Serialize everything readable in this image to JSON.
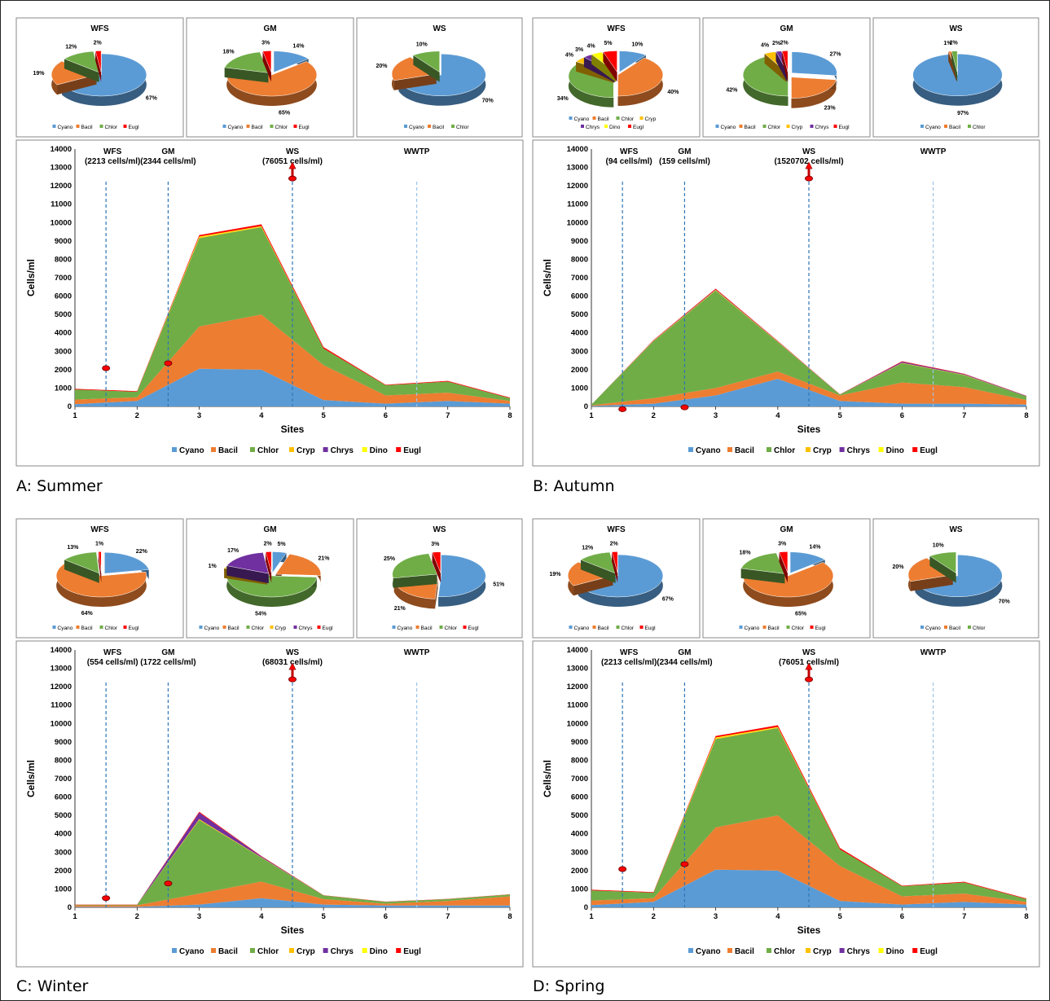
{
  "colors": {
    "Cyano": "#5b9bd5",
    "Bacil": "#ed7d31",
    "Chlor": "#70ad47",
    "Cryp": "#ffc000",
    "Chrys": "#7030a0",
    "Dino": "#ffff00",
    "Eugl": "#ff0000"
  },
  "panels": [
    {
      "caption": "A: Summer",
      "pies": [
        {
          "title": "WFS",
          "legend": [
            "Cyano",
            "Bacil",
            "Chlor",
            "Eugl"
          ],
          "slices": [
            {
              "cat": "Cyano",
              "value": 67,
              "label": "67%"
            },
            {
              "cat": "Bacil",
              "value": 19,
              "label": "19%"
            },
            {
              "cat": "Chlor",
              "value": 12,
              "label": "12%"
            },
            {
              "cat": "Eugl",
              "value": 2,
              "label": "2%"
            }
          ]
        },
        {
          "title": "GM",
          "legend": [
            "Cyano",
            "Bacil",
            "Chlor",
            "Eugl"
          ],
          "slices": [
            {
              "cat": "Cyano",
              "value": 14,
              "label": "14%"
            },
            {
              "cat": "Bacil",
              "value": 65,
              "label": "65%"
            },
            {
              "cat": "Chlor",
              "value": 18,
              "label": "18%"
            },
            {
              "cat": "Eugl",
              "value": 3,
              "label": "3%"
            }
          ]
        },
        {
          "title": "WS",
          "legend": [
            "Cyano",
            "Bacil",
            "Chlor"
          ],
          "slices": [
            {
              "cat": "Cyano",
              "value": 70,
              "label": "70%"
            },
            {
              "cat": "Bacil",
              "value": 20,
              "label": "20%"
            },
            {
              "cat": "Chlor",
              "value": 10,
              "label": "10%"
            }
          ]
        }
      ],
      "area": {
        "ylabel": "Cells/ml",
        "xlabel": "Sites",
        "yticks": [
          0,
          1000,
          2000,
          3000,
          4000,
          5000,
          6000,
          7000,
          8000,
          9000,
          10000,
          11000,
          12000,
          13000,
          14000
        ],
        "xticks": [
          1,
          2,
          3,
          4,
          5,
          6,
          7,
          8
        ],
        "series": {
          "Cyano": [
            120,
            300,
            2050,
            2000,
            350,
            150,
            300,
            150
          ],
          "Bacil": [
            250,
            200,
            2300,
            3000,
            1900,
            450,
            450,
            150
          ],
          "Chlor": [
            550,
            300,
            4800,
            4750,
            900,
            550,
            600,
            150
          ],
          "Cryp": [
            0,
            0,
            50,
            30,
            0,
            0,
            0,
            0
          ],
          "Chrys": [
            0,
            0,
            0,
            0,
            0,
            0,
            0,
            0
          ],
          "Dino": [
            0,
            0,
            40,
            30,
            0,
            0,
            0,
            0
          ],
          "Eugl": [
            40,
            30,
            80,
            100,
            80,
            30,
            40,
            30
          ]
        },
        "markers": [
          {
            "label": "WFS",
            "sub": "(2213 cells/ml)",
            "x": 1.5,
            "dot": 2080,
            "arrow": false
          },
          {
            "label": "GM",
            "sub": "(2344 cells/ml)",
            "x": 2.5,
            "dot": 2350,
            "arrow": false
          },
          {
            "label": "WS",
            "sub": "(76051 cells/ml)",
            "x": 4.5,
            "dot": 12400,
            "arrow": true
          },
          {
            "label": "WWTP",
            "sub": "",
            "x": 6.5,
            "dot": null,
            "arrow": false
          }
        ]
      }
    },
    {
      "caption": "B: Autumn",
      "pies": [
        {
          "title": "WFS",
          "legend": [
            "Cyano",
            "Bacil",
            "Chlor",
            "Cryp",
            "Chrys",
            "Dino",
            "Eugl"
          ],
          "slices": [
            {
              "cat": "Cyano",
              "value": 10,
              "label": "10%"
            },
            {
              "cat": "Bacil",
              "value": 40,
              "label": "40%"
            },
            {
              "cat": "Chlor",
              "value": 34,
              "label": "34%"
            },
            {
              "cat": "Cryp",
              "value": 4,
              "label": "4%"
            },
            {
              "cat": "Chrys",
              "value": 3,
              "label": "3%"
            },
            {
              "cat": "Dino",
              "value": 4,
              "label": "4%"
            },
            {
              "cat": "Eugl",
              "value": 5,
              "label": "5%"
            }
          ]
        },
        {
          "title": "GM",
          "legend": [
            "Cyano",
            "Bacil",
            "Chlor",
            "Cryp",
            "Chrys",
            "Eugl"
          ],
          "slices": [
            {
              "cat": "Cyano",
              "value": 27,
              "label": "27%"
            },
            {
              "cat": "Bacil",
              "value": 23,
              "label": "23%"
            },
            {
              "cat": "Chlor",
              "value": 42,
              "label": "42%"
            },
            {
              "cat": "Cryp",
              "value": 4,
              "label": "4%"
            },
            {
              "cat": "Chrys",
              "value": 2,
              "label": "2%"
            },
            {
              "cat": "Eugl",
              "value": 2,
              "label": "2%"
            }
          ]
        },
        {
          "title": "WS",
          "legend": [
            "Cyano",
            "Bacil",
            "Chlor"
          ],
          "slices": [
            {
              "cat": "Cyano",
              "value": 97,
              "label": "97%"
            },
            {
              "cat": "Bacil",
              "value": 1,
              "label": "1%"
            },
            {
              "cat": "Chlor",
              "value": 2,
              "label": "2%"
            }
          ]
        }
      ],
      "area": {
        "ylabel": "Cells/ml",
        "xlabel": "Sites",
        "yticks": [
          0,
          1000,
          2000,
          3000,
          4000,
          5000,
          6000,
          7000,
          8000,
          9000,
          10000,
          11000,
          12000,
          13000,
          14000
        ],
        "xticks": [
          1,
          2,
          3,
          4,
          5,
          6,
          7,
          8
        ],
        "series": {
          "Cyano": [
            30,
            150,
            600,
            1500,
            300,
            150,
            150,
            100
          ],
          "Bacil": [
            30,
            300,
            400,
            400,
            300,
            1150,
            900,
            250
          ],
          "Chlor": [
            40,
            3100,
            5300,
            1600,
            50,
            1050,
            650,
            200
          ],
          "Cryp": [
            0,
            20,
            40,
            20,
            0,
            20,
            20,
            0
          ],
          "Chrys": [
            0,
            20,
            30,
            20,
            0,
            60,
            40,
            20
          ],
          "Dino": [
            0,
            0,
            0,
            0,
            0,
            0,
            0,
            0
          ],
          "Eugl": [
            0,
            20,
            40,
            20,
            10,
            30,
            20,
            10
          ]
        },
        "markers": [
          {
            "label": "WFS",
            "sub": "(94 cells/ml)",
            "x": 1.5,
            "dot": -150,
            "arrow": false
          },
          {
            "label": "GM",
            "sub": "(159 cells/ml)",
            "x": 2.5,
            "dot": -50,
            "arrow": false
          },
          {
            "label": "WS",
            "sub": "(1520702 cells/ml)",
            "x": 4.5,
            "dot": 12400,
            "arrow": true
          },
          {
            "label": "WWTP",
            "sub": "",
            "x": 6.5,
            "dot": null,
            "arrow": false
          }
        ]
      }
    },
    {
      "caption": "C: Winter",
      "pies": [
        {
          "title": "WFS",
          "legend": [
            "Cyano",
            "Bacil",
            "Chlor",
            "Eugl"
          ],
          "slices": [
            {
              "cat": "Cyano",
              "value": 22,
              "label": "22%"
            },
            {
              "cat": "Bacil",
              "value": 64,
              "label": "64%"
            },
            {
              "cat": "Chlor",
              "value": 13,
              "label": "13%"
            },
            {
              "cat": "Eugl",
              "value": 1,
              "label": "1%"
            }
          ]
        },
        {
          "title": "GM",
          "legend": [
            "Cyano",
            "Bacil",
            "Chlor",
            "Cryp",
            "Chrys",
            "Eugl"
          ],
          "slices": [
            {
              "cat": "Cyano",
              "value": 5,
              "label": "5%"
            },
            {
              "cat": "Bacil",
              "value": 21,
              "label": "21%"
            },
            {
              "cat": "Chlor",
              "value": 54,
              "label": "54%"
            },
            {
              "cat": "Cryp",
              "value": 1,
              "label": "1%"
            },
            {
              "cat": "Chrys",
              "value": 17,
              "label": "17%"
            },
            {
              "cat": "Eugl",
              "value": 2,
              "label": "2%"
            }
          ]
        },
        {
          "title": "WS",
          "legend": [
            "Cyano",
            "Bacil",
            "Chlor",
            "Eugl"
          ],
          "slices": [
            {
              "cat": "Cyano",
              "value": 51,
              "label": "51%"
            },
            {
              "cat": "Bacil",
              "value": 21,
              "label": "21%"
            },
            {
              "cat": "Chlor",
              "value": 25,
              "label": "25%"
            },
            {
              "cat": "Eugl",
              "value": 3,
              "label": "3%"
            }
          ]
        }
      ],
      "area": {
        "ylabel": "Cells/ml",
        "xlabel": "Sites",
        "yticks": [
          0,
          1000,
          2000,
          3000,
          4000,
          5000,
          6000,
          7000,
          8000,
          9000,
          10000,
          11000,
          12000,
          13000,
          14000
        ],
        "xticks": [
          1,
          2,
          3,
          4,
          5,
          6,
          7,
          8
        ],
        "series": {
          "Cyano": [
            30,
            30,
            150,
            500,
            150,
            100,
            100,
            100
          ],
          "Bacil": [
            80,
            80,
            600,
            900,
            300,
            100,
            250,
            500
          ],
          "Chlor": [
            30,
            30,
            4000,
            1300,
            200,
            100,
            100,
            100
          ],
          "Cryp": [
            0,
            0,
            50,
            20,
            0,
            0,
            0,
            0
          ],
          "Chrys": [
            0,
            0,
            350,
            50,
            0,
            0,
            0,
            0
          ],
          "Dino": [
            0,
            0,
            0,
            0,
            0,
            0,
            0,
            0
          ],
          "Eugl": [
            10,
            10,
            50,
            20,
            10,
            10,
            10,
            10
          ]
        },
        "markers": [
          {
            "label": "WFS",
            "sub": "(554 cells/ml)",
            "x": 1.5,
            "dot": 500,
            "arrow": false
          },
          {
            "label": "GM",
            "sub": "(1722 cells/ml)",
            "x": 2.5,
            "dot": 1300,
            "arrow": false
          },
          {
            "label": "WS",
            "sub": "(68031 cells/ml)",
            "x": 4.5,
            "dot": 12400,
            "arrow": true
          },
          {
            "label": "WWTP",
            "sub": "",
            "x": 6.5,
            "dot": null,
            "arrow": false
          }
        ]
      }
    },
    {
      "caption": "D: Spring",
      "pies": [
        {
          "title": "WFS",
          "legend": [
            "Cyano",
            "Bacil",
            "Chlor",
            "Eugl"
          ],
          "slices": [
            {
              "cat": "Cyano",
              "value": 67,
              "label": "67%"
            },
            {
              "cat": "Bacil",
              "value": 19,
              "label": "19%"
            },
            {
              "cat": "Chlor",
              "value": 12,
              "label": "12%"
            },
            {
              "cat": "Eugl",
              "value": 2,
              "label": "2%"
            }
          ]
        },
        {
          "title": "GM",
          "legend": [
            "Cyano",
            "Bacil",
            "Chlor",
            "Eugl"
          ],
          "slices": [
            {
              "cat": "Cyano",
              "value": 14,
              "label": "14%"
            },
            {
              "cat": "Bacil",
              "value": 65,
              "label": "65%"
            },
            {
              "cat": "Chlor",
              "value": 18,
              "label": "18%"
            },
            {
              "cat": "Eugl",
              "value": 3,
              "label": "3%"
            }
          ]
        },
        {
          "title": "WS",
          "legend": [
            "Cyano",
            "Bacil",
            "Chlor"
          ],
          "slices": [
            {
              "cat": "Cyano",
              "value": 70,
              "label": "70%"
            },
            {
              "cat": "Bacil",
              "value": 20,
              "label": "20%"
            },
            {
              "cat": "Chlor",
              "value": 10,
              "label": "10%"
            }
          ]
        }
      ],
      "area": {
        "ylabel": "Cells/ml",
        "xlabel": "Sites",
        "yticks": [
          0,
          1000,
          2000,
          3000,
          4000,
          5000,
          6000,
          7000,
          8000,
          9000,
          10000,
          11000,
          12000,
          13000,
          14000
        ],
        "xticks": [
          1,
          2,
          3,
          4,
          5,
          6,
          7,
          8
        ],
        "series": {
          "Cyano": [
            120,
            300,
            2050,
            2000,
            350,
            150,
            300,
            150
          ],
          "Bacil": [
            250,
            200,
            2300,
            3000,
            1900,
            450,
            450,
            150
          ],
          "Chlor": [
            550,
            300,
            4800,
            4750,
            900,
            550,
            600,
            150
          ],
          "Cryp": [
            0,
            0,
            50,
            30,
            0,
            0,
            0,
            0
          ],
          "Chrys": [
            0,
            0,
            0,
            0,
            0,
            0,
            0,
            0
          ],
          "Dino": [
            0,
            0,
            40,
            30,
            0,
            0,
            0,
            0
          ],
          "Eugl": [
            40,
            30,
            80,
            100,
            80,
            30,
            40,
            30
          ]
        },
        "markers": [
          {
            "label": "WFS",
            "sub": "(2213 cells/ml)",
            "x": 1.5,
            "dot": 2080,
            "arrow": false
          },
          {
            "label": "GM",
            "sub": "(2344 cells/ml)",
            "x": 2.5,
            "dot": 2350,
            "arrow": false
          },
          {
            "label": "WS",
            "sub": "(76051 cells/ml)",
            "x": 4.5,
            "dot": 12400,
            "arrow": true
          },
          {
            "label": "WWTP",
            "sub": "",
            "x": 6.5,
            "dot": null,
            "arrow": false
          }
        ]
      }
    }
  ],
  "area_legend": [
    "Cyano",
    "Bacil",
    "Chlor",
    "Cryp",
    "Chrys",
    "Dino",
    "Eugl"
  ],
  "chart_data": [
    {
      "type": "area",
      "caption": "A: Summer",
      "xlabel": "Sites",
      "ylabel": "Cells/ml",
      "ylim": [
        0,
        14000
      ],
      "x": [
        1,
        2,
        3,
        4,
        5,
        6,
        7,
        8
      ],
      "stacked": true,
      "legend": "bottom"
    },
    {
      "type": "area",
      "caption": "B: Autumn",
      "xlabel": "Sites",
      "ylabel": "Cells/ml",
      "ylim": [
        0,
        14000
      ],
      "x": [
        1,
        2,
        3,
        4,
        5,
        6,
        7,
        8
      ],
      "stacked": true,
      "legend": "bottom"
    },
    {
      "type": "area",
      "caption": "C: Winter",
      "xlabel": "Sites",
      "ylabel": "Cells/ml",
      "ylim": [
        0,
        14000
      ],
      "x": [
        1,
        2,
        3,
        4,
        5,
        6,
        7,
        8
      ],
      "stacked": true,
      "legend": "bottom"
    },
    {
      "type": "area",
      "caption": "D: Spring",
      "xlabel": "Sites",
      "ylabel": "Cells/ml",
      "ylim": [
        0,
        14000
      ],
      "x": [
        1,
        2,
        3,
        4,
        5,
        6,
        7,
        8
      ],
      "stacked": true,
      "legend": "bottom"
    }
  ]
}
